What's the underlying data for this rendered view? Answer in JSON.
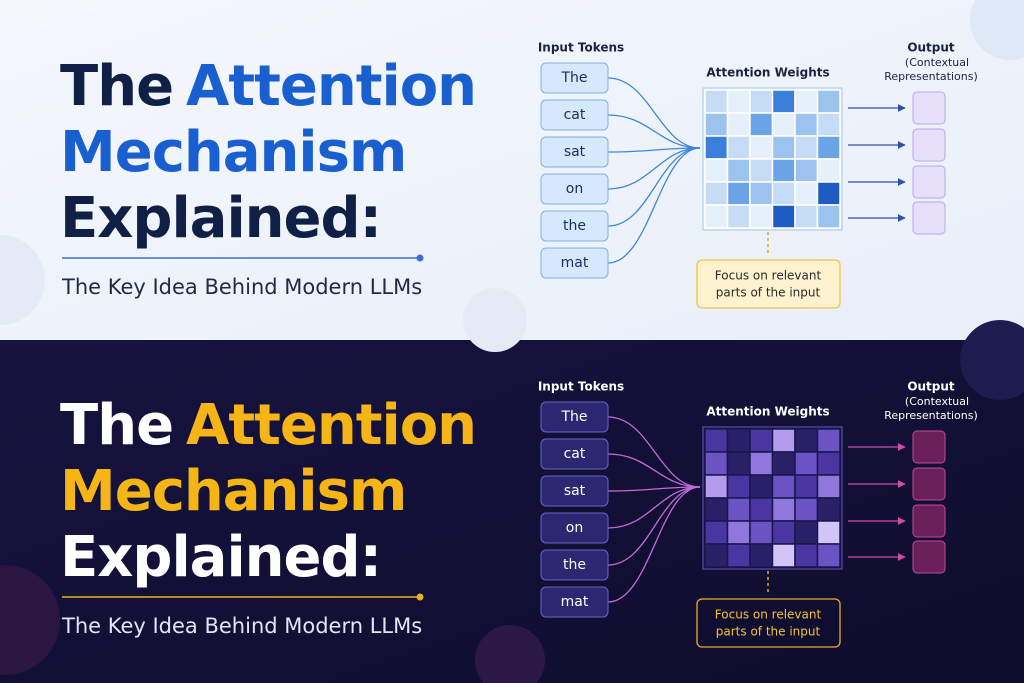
{
  "panels": [
    {
      "title": {
        "word1": "The",
        "word2": "Attention",
        "line2": "Mechanism",
        "line3": "Explained:"
      },
      "subtitle": "The Key Idea Behind Modern LLMs",
      "input_label": "Input Tokens",
      "tokens": [
        "The",
        "cat",
        "sat",
        "on",
        "the",
        "mat"
      ],
      "weights_label": "Attention Weights",
      "output_label": "Output",
      "output_note": [
        "(Contextual",
        "Representations)"
      ],
      "focus_note": [
        "Focus on relevant",
        "parts of the input"
      ]
    },
    {
      "title": {
        "word1": "The",
        "word2": "Attention",
        "line2": "Mechanism",
        "line3": "Explained:"
      },
      "subtitle": "The Key Idea Behind Modern LLMs",
      "input_label": "Input Tokens",
      "tokens": [
        "The",
        "cat",
        "sat",
        "on",
        "the",
        "mat"
      ],
      "weights_label": "Attention Weights",
      "output_label": "Output",
      "output_note": [
        "(Contextual",
        "Representations)"
      ],
      "focus_note": [
        "Focus on relevant",
        "parts of the input"
      ]
    }
  ]
}
